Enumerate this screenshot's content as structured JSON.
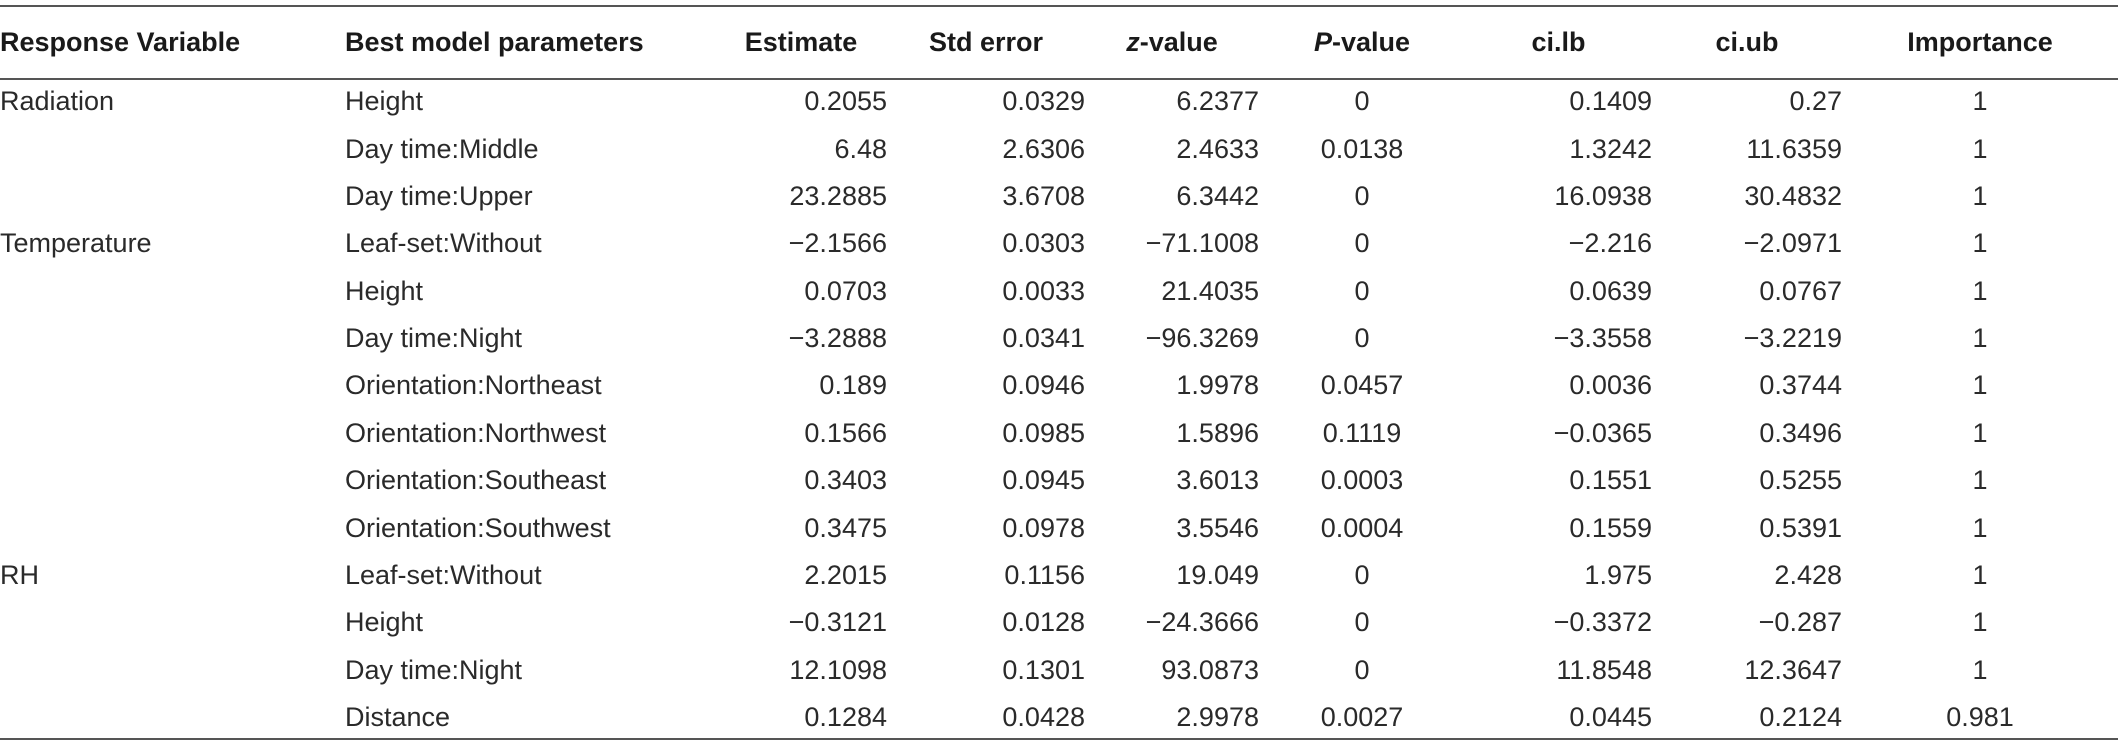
{
  "table": {
    "headers": {
      "response_variable": "Response Variable",
      "best_model_parameters": "Best model parameters",
      "estimate": "Estimate",
      "std_error": "Std error",
      "z_value_italic": "z",
      "z_value_rest": "-value",
      "p_value_italic": "P",
      "p_value_rest": "-value",
      "ci_lb": "ci.lb",
      "ci_ub": "ci.ub",
      "importance": "Importance"
    },
    "rows": [
      {
        "response": "Radiation",
        "parameter": "Height",
        "estimate": "0.2055",
        "std_error": "0.0329",
        "z_value": "6.2377",
        "p_value": "0",
        "ci_lb": "0.1409",
        "ci_ub": "0.27",
        "importance": "1"
      },
      {
        "response": "",
        "parameter": "Day time:Middle",
        "estimate": "6.48",
        "std_error": "2.6306",
        "z_value": "2.4633",
        "p_value": "0.0138",
        "ci_lb": "1.3242",
        "ci_ub": "11.6359",
        "importance": "1"
      },
      {
        "response": "",
        "parameter": "Day time:Upper",
        "estimate": "23.2885",
        "std_error": "3.6708",
        "z_value": "6.3442",
        "p_value": "0",
        "ci_lb": "16.0938",
        "ci_ub": "30.4832",
        "importance": "1"
      },
      {
        "response": "Temperature",
        "parameter": "Leaf-set:Without",
        "estimate": "−2.1566",
        "std_error": "0.0303",
        "z_value": "−71.1008",
        "p_value": "0",
        "ci_lb": "−2.216",
        "ci_ub": "−2.0971",
        "importance": "1"
      },
      {
        "response": "",
        "parameter": "Height",
        "estimate": "0.0703",
        "std_error": "0.0033",
        "z_value": "21.4035",
        "p_value": "0",
        "ci_lb": "0.0639",
        "ci_ub": "0.0767",
        "importance": "1"
      },
      {
        "response": "",
        "parameter": "Day time:Night",
        "estimate": "−3.2888",
        "std_error": "0.0341",
        "z_value": "−96.3269",
        "p_value": "0",
        "ci_lb": "−3.3558",
        "ci_ub": "−3.2219",
        "importance": "1"
      },
      {
        "response": "",
        "parameter": "Orientation:Northeast",
        "estimate": "0.189",
        "std_error": "0.0946",
        "z_value": "1.9978",
        "p_value": "0.0457",
        "ci_lb": "0.0036",
        "ci_ub": "0.3744",
        "importance": "1"
      },
      {
        "response": "",
        "parameter": "Orientation:Northwest",
        "estimate": "0.1566",
        "std_error": "0.0985",
        "z_value": "1.5896",
        "p_value": "0.1119",
        "ci_lb": "−0.0365",
        "ci_ub": "0.3496",
        "importance": "1"
      },
      {
        "response": "",
        "parameter": "Orientation:Southeast",
        "estimate": "0.3403",
        "std_error": "0.0945",
        "z_value": "3.6013",
        "p_value": "0.0003",
        "ci_lb": "0.1551",
        "ci_ub": "0.5255",
        "importance": "1"
      },
      {
        "response": "",
        "parameter": "Orientation:Southwest",
        "estimate": "0.3475",
        "std_error": "0.0978",
        "z_value": "3.5546",
        "p_value": "0.0004",
        "ci_lb": "0.1559",
        "ci_ub": "0.5391",
        "importance": "1"
      },
      {
        "response": "RH",
        "parameter": "Leaf-set:Without",
        "estimate": "2.2015",
        "std_error": "0.1156",
        "z_value": "19.049",
        "p_value": "0",
        "ci_lb": "1.975",
        "ci_ub": "2.428",
        "importance": "1"
      },
      {
        "response": "",
        "parameter": "Height",
        "estimate": "−0.3121",
        "std_error": "0.0128",
        "z_value": "−24.3666",
        "p_value": "0",
        "ci_lb": "−0.3372",
        "ci_ub": "−0.287",
        "importance": "1"
      },
      {
        "response": "",
        "parameter": "Day time:Night",
        "estimate": "12.1098",
        "std_error": "0.1301",
        "z_value": "93.0873",
        "p_value": "0",
        "ci_lb": "11.8548",
        "ci_ub": "12.3647",
        "importance": "1"
      },
      {
        "response": "",
        "parameter": "Distance",
        "estimate": "0.1284",
        "std_error": "0.0428",
        "z_value": "2.9978",
        "p_value": "0.0027",
        "ci_lb": "0.0445",
        "ci_ub": "0.2124",
        "importance": "0.981"
      }
    ]
  }
}
